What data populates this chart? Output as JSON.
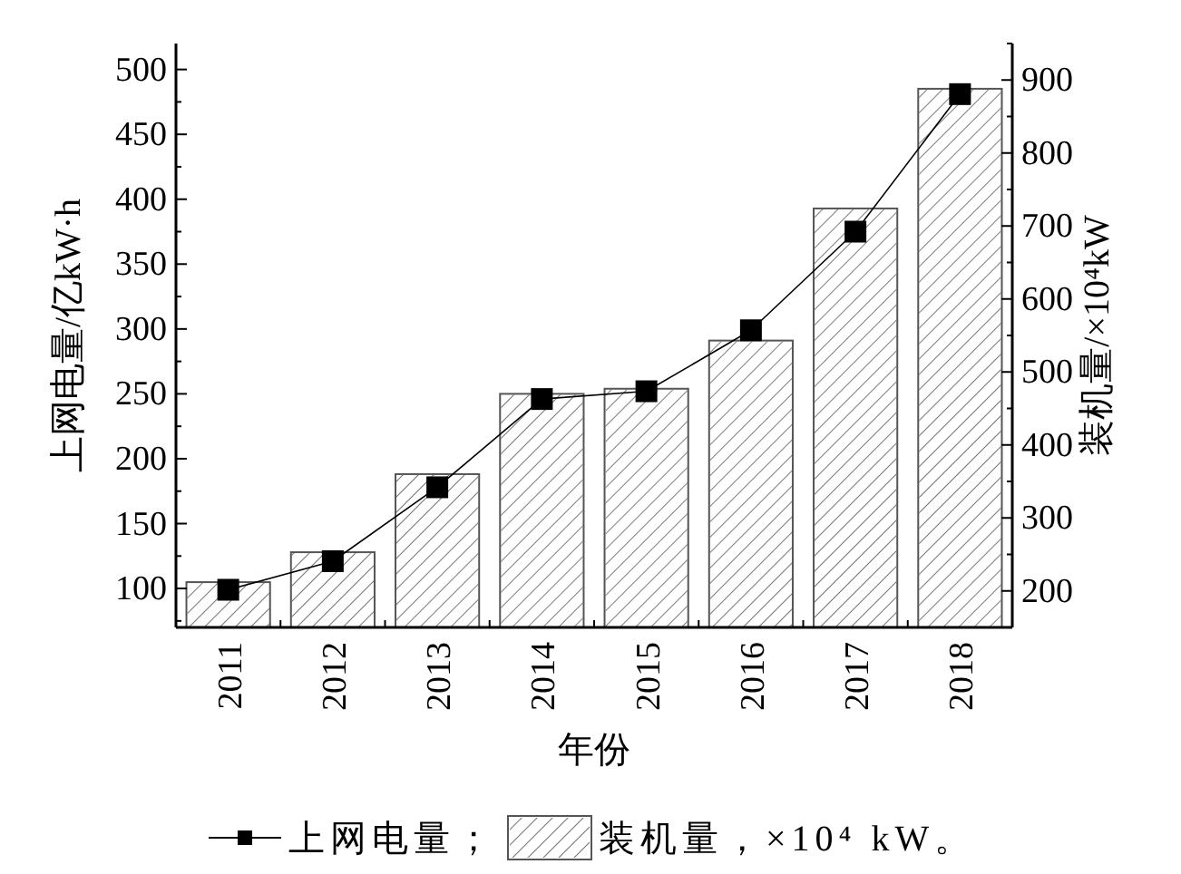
{
  "chart_data": {
    "type": "bar",
    "xlabel": "年份",
    "ylabel": "上网电量/亿kW·h",
    "y2label": "装机量/×10⁴kW",
    "categories": [
      "2011",
      "2012",
      "2013",
      "2014",
      "2015",
      "2016",
      "2017",
      "2018"
    ],
    "series": [
      {
        "name": "上网电量；",
        "type": "line",
        "color": "#000000",
        "marker": "square",
        "line_style": "solid",
        "values": [
          99,
          121,
          178,
          246,
          252,
          299,
          375,
          481
        ]
      },
      {
        "name": "装机量，×10⁴ kW。",
        "axis": "y2",
        "color": "#555555",
        "values": [
          212,
          253,
          360,
          470,
          477,
          543,
          724,
          888
        ]
      }
    ],
    "ylim": [
      70,
      520
    ],
    "yticks": [
      100,
      150,
      200,
      250,
      300,
      350,
      400,
      450,
      500
    ],
    "y2lim": [
      150,
      950
    ],
    "y2ticks": [
      200,
      300,
      400,
      500,
      600,
      700,
      800,
      900
    ],
    "grid": false,
    "legend": "bottom"
  }
}
